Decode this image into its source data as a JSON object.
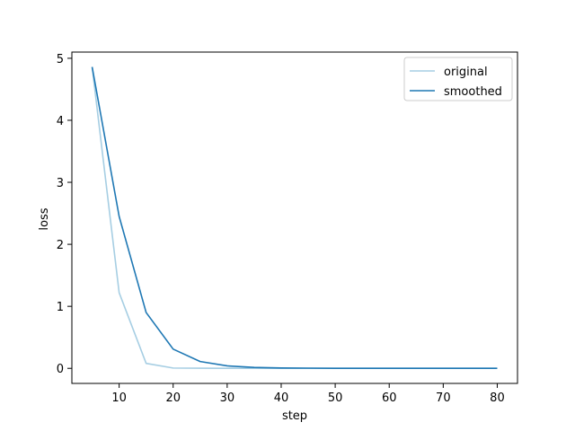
{
  "chart_data": {
    "type": "line",
    "title": "",
    "xlabel": "step",
    "ylabel": "loss",
    "xlim": [
      1.25,
      83.75
    ],
    "ylim": [
      -0.243,
      5.1
    ],
    "x_ticks": [
      10,
      20,
      30,
      40,
      50,
      60,
      70,
      80
    ],
    "y_ticks": [
      0,
      1,
      2,
      3,
      4,
      5
    ],
    "grid": false,
    "legend_position": "top-right",
    "x": [
      5,
      10,
      15,
      20,
      25,
      30,
      35,
      40,
      45,
      50,
      55,
      60,
      65,
      70,
      75,
      80
    ],
    "series": [
      {
        "name": "original",
        "color": "#a6cee3",
        "values": [
          4.86,
          1.22,
          0.08,
          0.005,
          0.002,
          0.001,
          0.0,
          0.0,
          0.0,
          0.0,
          0.0,
          0.0,
          0.0,
          0.0,
          0.0,
          0.0
        ]
      },
      {
        "name": "smoothed",
        "color": "#1f78b4",
        "values": [
          4.86,
          2.45,
          0.9,
          0.31,
          0.11,
          0.04,
          0.015,
          0.006,
          0.003,
          0.001,
          0.0,
          0.0,
          0.0,
          0.0,
          0.0,
          0.0
        ]
      }
    ]
  }
}
